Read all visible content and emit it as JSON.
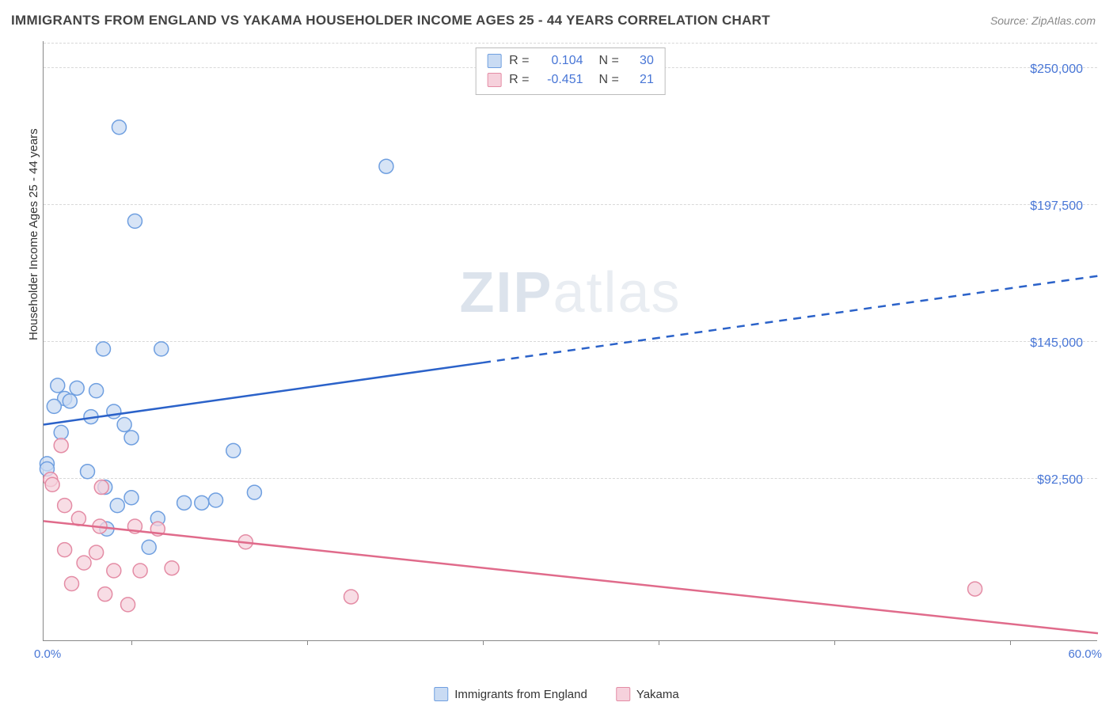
{
  "title": "IMMIGRANTS FROM ENGLAND VS YAKAMA HOUSEHOLDER INCOME AGES 25 - 44 YEARS CORRELATION CHART",
  "source": "Source: ZipAtlas.com",
  "ylabel": "Householder Income Ages 25 - 44 years",
  "watermark_zip": "ZIP",
  "watermark_rest": "atlas",
  "chart": {
    "type": "scatter-with-trend",
    "background_color": "#ffffff",
    "grid_color": "#d8d8d8",
    "axis_color": "#888888",
    "xlim": [
      0,
      60
    ],
    "ylim": [
      30000,
      260000
    ],
    "xtick_percent_positions": [
      0.083,
      0.25,
      0.417,
      0.583,
      0.75,
      0.917
    ],
    "xaxis_labels": {
      "min": "0.0%",
      "max": "60.0%"
    },
    "yaxis_ticks": [
      {
        "value": 92500,
        "label": "$92,500"
      },
      {
        "value": 145000,
        "label": "$145,000"
      },
      {
        "value": 197500,
        "label": "$197,500"
      },
      {
        "value": 250000,
        "label": "$250,000"
      }
    ],
    "y_label_fontsize": 15,
    "tick_fontsize": 16,
    "tick_color": "#4876d6"
  },
  "stats": {
    "rows": [
      {
        "swatch_fill": "#c9dbf3",
        "swatch_border": "#6f9fe0",
        "R_label": "R =",
        "R": "0.104",
        "N_label": "N =",
        "N": "30"
      },
      {
        "swatch_fill": "#f6d1dc",
        "swatch_border": "#e48ca5",
        "R_label": "R =",
        "R": "-0.451",
        "N_label": "N =",
        "N": "21"
      }
    ]
  },
  "legend": {
    "items": [
      {
        "swatch_fill": "#c9dbf3",
        "swatch_border": "#6f9fe0",
        "label": "Immigrants from England"
      },
      {
        "swatch_fill": "#f6d1dc",
        "swatch_border": "#e48ca5",
        "label": "Yakama"
      }
    ]
  },
  "series": [
    {
      "name": "Immigrants from England",
      "marker_fill": "#c9dbf3",
      "marker_stroke": "#6f9fe0",
      "marker_opacity": 0.75,
      "marker_radius": 9,
      "trend": {
        "color": "#2b62c9",
        "width": 2.5,
        "y_at_x0": 113000,
        "y_at_x60": 170000,
        "solid_until_x": 25
      },
      "points": [
        {
          "x": 4.3,
          "y": 227000
        },
        {
          "x": 5.2,
          "y": 191000
        },
        {
          "x": 19.5,
          "y": 212000
        },
        {
          "x": 3.4,
          "y": 142000
        },
        {
          "x": 6.7,
          "y": 142000
        },
        {
          "x": 0.8,
          "y": 128000
        },
        {
          "x": 1.9,
          "y": 127000
        },
        {
          "x": 3.0,
          "y": 126000
        },
        {
          "x": 1.2,
          "y": 123000
        },
        {
          "x": 1.5,
          "y": 122000
        },
        {
          "x": 0.6,
          "y": 120000
        },
        {
          "x": 4.0,
          "y": 118000
        },
        {
          "x": 2.7,
          "y": 116000
        },
        {
          "x": 4.6,
          "y": 113000
        },
        {
          "x": 1.0,
          "y": 110000
        },
        {
          "x": 5.0,
          "y": 108000
        },
        {
          "x": 10.8,
          "y": 103000
        },
        {
          "x": 0.2,
          "y": 98000
        },
        {
          "x": 0.2,
          "y": 96000
        },
        {
          "x": 2.5,
          "y": 95000
        },
        {
          "x": 3.5,
          "y": 89000
        },
        {
          "x": 12.0,
          "y": 87000
        },
        {
          "x": 5.0,
          "y": 85000
        },
        {
          "x": 4.2,
          "y": 82000
        },
        {
          "x": 8.0,
          "y": 83000
        },
        {
          "x": 9.0,
          "y": 83000
        },
        {
          "x": 9.8,
          "y": 84000
        },
        {
          "x": 6.0,
          "y": 66000
        },
        {
          "x": 3.6,
          "y": 73000
        },
        {
          "x": 6.5,
          "y": 77000
        }
      ]
    },
    {
      "name": "Yakama",
      "marker_fill": "#f6d1dc",
      "marker_stroke": "#e48ca5",
      "marker_opacity": 0.75,
      "marker_radius": 9,
      "trend": {
        "color": "#e06b8b",
        "width": 2.5,
        "y_at_x0": 76000,
        "y_at_x60": 33000,
        "solid_until_x": 60
      },
      "points": [
        {
          "x": 1.0,
          "y": 105000
        },
        {
          "x": 0.4,
          "y": 92000
        },
        {
          "x": 0.5,
          "y": 90000
        },
        {
          "x": 3.3,
          "y": 89000
        },
        {
          "x": 1.2,
          "y": 82000
        },
        {
          "x": 2.0,
          "y": 77000
        },
        {
          "x": 3.2,
          "y": 74000
        },
        {
          "x": 5.2,
          "y": 74000
        },
        {
          "x": 6.5,
          "y": 73000
        },
        {
          "x": 1.2,
          "y": 65000
        },
        {
          "x": 2.3,
          "y": 60000
        },
        {
          "x": 11.5,
          "y": 68000
        },
        {
          "x": 4.0,
          "y": 57000
        },
        {
          "x": 5.5,
          "y": 57000
        },
        {
          "x": 7.3,
          "y": 58000
        },
        {
          "x": 3.0,
          "y": 64000
        },
        {
          "x": 1.6,
          "y": 52000
        },
        {
          "x": 3.5,
          "y": 48000
        },
        {
          "x": 4.8,
          "y": 44000
        },
        {
          "x": 17.5,
          "y": 47000
        },
        {
          "x": 53.0,
          "y": 50000
        }
      ]
    }
  ]
}
